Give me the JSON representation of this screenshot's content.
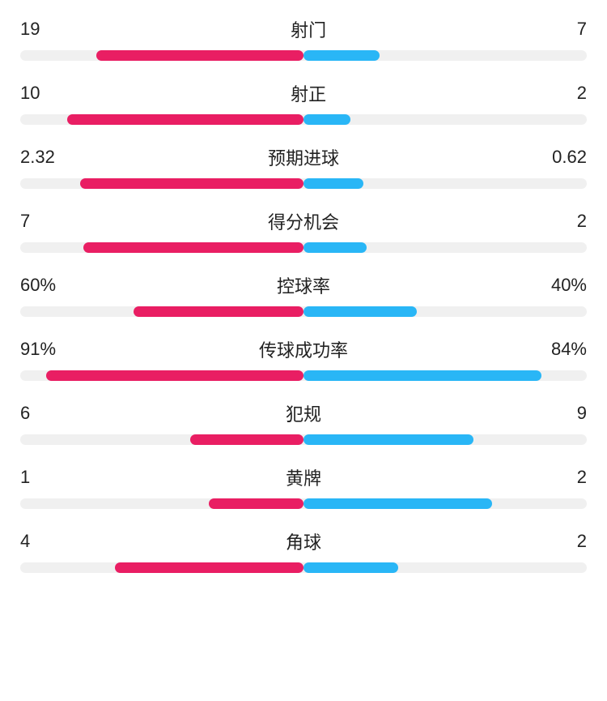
{
  "colors": {
    "left_bar": "#e91e63",
    "right_bar": "#29b6f6",
    "track": "#f0f0f0",
    "text": "#222222"
  },
  "stats": [
    {
      "label": "射门",
      "left_value": "19",
      "right_value": "7",
      "left_pct": 73.1,
      "right_pct": 26.9
    },
    {
      "label": "射正",
      "left_value": "10",
      "right_value": "2",
      "left_pct": 83.3,
      "right_pct": 16.7
    },
    {
      "label": "预期进球",
      "left_value": "2.32",
      "right_value": "0.62",
      "left_pct": 78.9,
      "right_pct": 21.1
    },
    {
      "label": "得分机会",
      "left_value": "7",
      "right_value": "2",
      "left_pct": 77.8,
      "right_pct": 22.2
    },
    {
      "label": "控球率",
      "left_value": "60%",
      "right_value": "40%",
      "left_pct": 60.0,
      "right_pct": 40.0
    },
    {
      "label": "传球成功率",
      "left_value": "91%",
      "right_value": "84%",
      "left_pct": 91.0,
      "right_pct": 84.0
    },
    {
      "label": "犯规",
      "left_value": "6",
      "right_value": "9",
      "left_pct": 40.0,
      "right_pct": 60.0
    },
    {
      "label": "黄牌",
      "left_value": "1",
      "right_value": "2",
      "left_pct": 33.3,
      "right_pct": 66.7
    },
    {
      "label": "角球",
      "left_value": "4",
      "right_value": "2",
      "left_pct": 66.7,
      "right_pct": 33.3
    }
  ]
}
